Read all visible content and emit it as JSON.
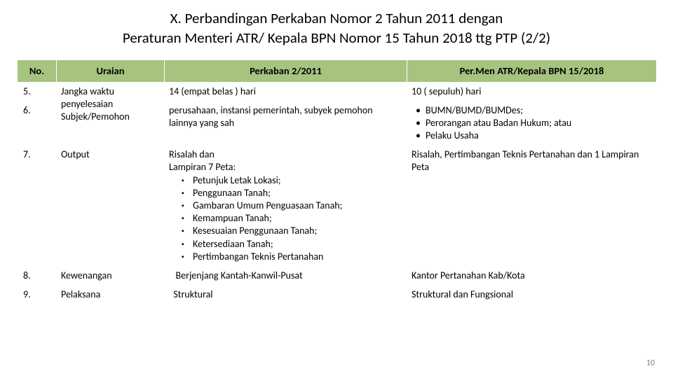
{
  "title_line1": "X. Perbandingan Perkaban Nomor 2 Tahun 2011 dengan",
  "title_line2": "Peraturan Menteri ATR/ Kepala BPN Nomor 15 Tahun 2018 ttg PTP (2/2)",
  "headers": {
    "no": "No.",
    "uraian": "Uraian",
    "perkaban": "Perkaban 2/2011",
    "permen": "Per.Men ATR/Kepala BPN  15/2018"
  },
  "rows": {
    "r5": {
      "no": "5.",
      "uraian": "Jangka waktu penyelesaian",
      "perkaban": "14 (empat belas ) hari",
      "permen": "10 ( sepuluh) hari"
    },
    "r6": {
      "no": "6.",
      "uraian": "Subjek/Pemohon",
      "perkaban": "perusahaan, instansi pemerintah, subyek pemohon lainnya yang sah",
      "permen_b1": "BUMN/BUMD/BUMDes;",
      "permen_b2": "Perorangan atau Badan Hukum; atau",
      "permen_b3": "Pelaku Usaha"
    },
    "r7": {
      "no": "7.",
      "uraian": "Output",
      "perkaban_intro1": "Risalah dan",
      "perkaban_intro2": "Lampiran 7 Peta:",
      "perkaban_s1": "Petunjuk Letak Lokasi;",
      "perkaban_s2": "Penggunaan Tanah;",
      "perkaban_s3": "Gambaran Umum Penguasaan Tanah;",
      "perkaban_s4": "Kemampuan Tanah;",
      "perkaban_s5": "Kesesuaian Penggunaan Tanah;",
      "perkaban_s6": "Ketersediaan Tanah;",
      "perkaban_s7": "Pertimbangan Teknis Pertanahan",
      "permen": "Risalah, Pertimbangan Teknis Pertanahan dan 1 Lampiran Peta"
    },
    "r8": {
      "no": "8.",
      "uraian": "Kewenangan",
      "perkaban": "   Berjenjang Kantah-Kanwil-Pusat",
      "permen": "Kantor Pertanahan Kab/Kota"
    },
    "r9": {
      "no": "9.",
      "uraian": "Pelaksana",
      "perkaban": "  Struktural",
      "permen": "Struktural dan Fungsional"
    }
  },
  "pagenum": "10",
  "colors": {
    "header_bg": "#a6c37f",
    "border": "#ffffff",
    "text": "#000000",
    "pagenum": "#808080"
  }
}
